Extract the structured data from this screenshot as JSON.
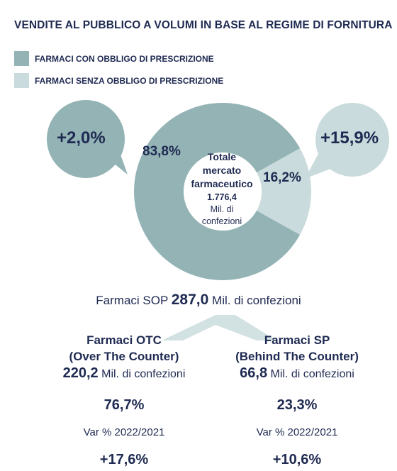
{
  "title": "VENDITE AL PUBBLICO A VOLUMI IN BASE AL REGIME DI FORNITURA",
  "colors": {
    "rx": "#93b3b5",
    "otc": "#c9dbdc",
    "text": "#1f2a52",
    "ribbon": "#d2e1e2"
  },
  "legend": [
    {
      "label": "FARMACI CON OBBLIGO DI PRESCRIZIONE"
    },
    {
      "label": "FARMACI SENZA OBBLIGO DI PRESCRIZIONE"
    }
  ],
  "center": {
    "line1": "Totale",
    "line2": "mercato",
    "line3": "farmaceutico",
    "value": "1.776,4",
    "unit1": "Mil. di",
    "unit2": "confezioni"
  },
  "bubbles": {
    "rx": "+2,0%",
    "otc": "+15,9%"
  },
  "sop": {
    "prefix": "Farmaci SOP",
    "value": "287,0",
    "unit": "Mil. di confezioni"
  },
  "columns": {
    "otc": {
      "title1": "Farmaci OTC",
      "title2": "(Over The Counter)",
      "value": "220,2",
      "unit": "Mil. di confezioni",
      "share": "76,7%",
      "var_label": "Var % 2022/2021",
      "var_value": "+17,6%"
    },
    "sp": {
      "title1": "Farmaci SP",
      "title2": "(Behind The Counter)",
      "value": "66,8",
      "unit": "Mil. di confezioni",
      "share": "23,3%",
      "var_label": "Var % 2022/2021",
      "var_value": "+10,6%"
    }
  },
  "chart_data": {
    "type": "pie",
    "title": "VENDITE AL PUBBLICO A VOLUMI IN BASE AL REGIME DI FORNITURA",
    "categories": [
      "FARMACI CON OBBLIGO DI PRESCRIZIONE",
      "FARMACI SENZA OBBLIGO DI PRESCRIZIONE"
    ],
    "values": [
      83.8,
      16.2
    ],
    "labels": [
      "83,8%",
      "16,2%"
    ],
    "variation": [
      "+2,0%",
      "+15,9%"
    ],
    "total": 1776.4
  }
}
